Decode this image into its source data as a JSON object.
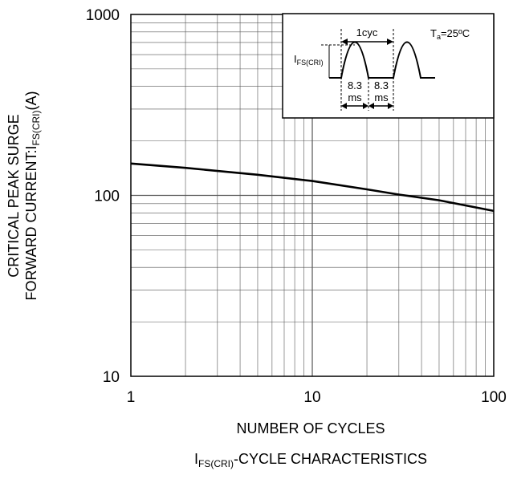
{
  "chart_data": {
    "type": "line",
    "x_scale": "log",
    "y_scale": "log",
    "xlim": [
      1,
      100
    ],
    "ylim": [
      10,
      1000
    ],
    "x_ticks": [
      "1",
      "10",
      "100"
    ],
    "y_ticks": [
      "10",
      "100",
      "1000"
    ],
    "grid": true,
    "xlabel": "NUMBER OF CYCLES",
    "ylabel_line1": "CRITICAL PEAK SURGE",
    "ylabel_line2_prefix": "FORWARD CURRENT:I",
    "ylabel_line2_sub": "FS(CRI)",
    "ylabel_line2_suffix": "(A)",
    "caption_prefix": "I",
    "caption_sub": "FS(CRI)",
    "caption_suffix": "-CYCLE CHARACTERISTICS",
    "series": [
      {
        "x": [
          1,
          2,
          5,
          10,
          20,
          30,
          50,
          100
        ],
        "y": [
          150,
          142,
          130,
          120,
          108,
          101,
          94,
          82
        ]
      }
    ],
    "inset": {
      "period_label": "1cyc",
      "temp_prefix": "T",
      "temp_sub": "a",
      "temp_suffix": "=25ºC",
      "current_prefix": "I",
      "current_sub": "FS(CRI)",
      "half_cycle_value": "8.3",
      "half_cycle_unit": "ms"
    }
  },
  "colors": {
    "line": "#000000",
    "grid": "#555555",
    "background": "#ffffff"
  }
}
